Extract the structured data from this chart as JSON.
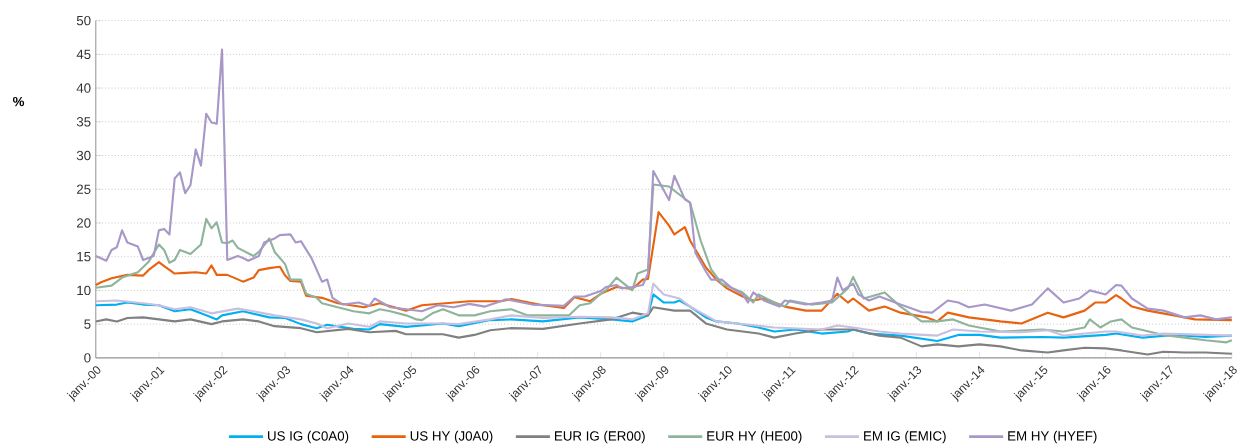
{
  "chart_data": {
    "type": "line",
    "ylabel": "%",
    "xlim": [
      "2000-01",
      "2018-01"
    ],
    "ylim": [
      0,
      50
    ],
    "yticks": [
      0,
      5,
      10,
      15,
      20,
      25,
      30,
      35,
      40,
      45,
      50
    ],
    "xticks": [
      {
        "value": "2000-01",
        "label": "janv.-00"
      },
      {
        "value": "2001-01",
        "label": "janv.-01"
      },
      {
        "value": "2002-01",
        "label": "janv.-02"
      },
      {
        "value": "2003-01",
        "label": "janv.-03"
      },
      {
        "value": "2004-01",
        "label": "janv.-04"
      },
      {
        "value": "2005-01",
        "label": "janv.-05"
      },
      {
        "value": "2006-01",
        "label": "janv.-06"
      },
      {
        "value": "2007-01",
        "label": "janv.-07"
      },
      {
        "value": "2008-01",
        "label": "janv.-08"
      },
      {
        "value": "2009-01",
        "label": "janv.-09"
      },
      {
        "value": "2010-01",
        "label": "janv.-10"
      },
      {
        "value": "2011-01",
        "label": "janv.-11"
      },
      {
        "value": "2012-01",
        "label": "janv.-12"
      },
      {
        "value": "2013-01",
        "label": "janv.-13"
      },
      {
        "value": "2014-01",
        "label": "janv.-14"
      },
      {
        "value": "2015-01",
        "label": "janv.-15"
      },
      {
        "value": "2016-01",
        "label": "janv.-16"
      },
      {
        "value": "2017-01",
        "label": "janv.-17"
      },
      {
        "value": "2018-01",
        "label": "janv.-18"
      }
    ],
    "grid": "y",
    "legend": "bottom",
    "series": [
      {
        "name": "US IG (C0A0)",
        "color": "#00b0f0",
        "x": [
          "2000-01",
          "2000-05",
          "2000-07",
          "2000-10",
          "2001-01",
          "2001-04",
          "2001-07",
          "2001-10",
          "2001-12",
          "2002-01",
          "2002-05",
          "2002-10",
          "2003-01",
          "2003-04",
          "2003-07",
          "2003-09",
          "2004-02",
          "2004-05",
          "2004-07",
          "2004-12",
          "2005-07",
          "2005-10",
          "2006-04",
          "2006-08",
          "2007-02",
          "2007-09",
          "2008-03",
          "2008-07",
          "2008-10",
          "2008-11",
          "2009-01",
          "2009-03",
          "2009-04",
          "2009-06",
          "2009-09",
          "2009-11",
          "2010-03",
          "2010-07",
          "2010-10",
          "2011-02",
          "2011-07",
          "2011-12",
          "2012-01",
          "2012-04",
          "2012-10",
          "2013-05",
          "2013-09",
          "2014-01",
          "2014-05",
          "2015-01",
          "2015-05",
          "2016-01",
          "2016-03",
          "2016-08",
          "2017-02",
          "2017-08",
          "2018-01"
        ],
        "values": [
          7.8,
          7.9,
          8.2,
          7.9,
          7.8,
          6.9,
          7.2,
          6.3,
          5.7,
          6.3,
          6.9,
          6.0,
          5.9,
          5.0,
          4.4,
          4.9,
          4.3,
          4.2,
          5.0,
          4.6,
          5.1,
          4.7,
          5.6,
          5.7,
          5.4,
          6.0,
          5.7,
          5.4,
          6.3,
          9.4,
          8.2,
          8.2,
          8.5,
          7.6,
          6.0,
          5.4,
          5.1,
          4.5,
          3.9,
          4.2,
          3.6,
          3.9,
          4.2,
          3.6,
          3.3,
          2.5,
          3.4,
          3.4,
          3.0,
          3.1,
          3.0,
          3.4,
          3.6,
          3.0,
          3.4,
          3.1,
          3.3
        ]
      },
      {
        "name": "US HY (J0A0)",
        "color": "#e8620f",
        "x": [
          "2000-01",
          "2000-02",
          "2000-04",
          "2000-07",
          "2000-10",
          "2000-11",
          "2001-01",
          "2001-02",
          "2001-04",
          "2001-06",
          "2001-08",
          "2001-10",
          "2001-11",
          "2001-12",
          "2002-02",
          "2002-05",
          "2002-07",
          "2002-08",
          "2002-10",
          "2002-12",
          "2003-01",
          "2003-02",
          "2003-04",
          "2003-05",
          "2003-08",
          "2003-11",
          "2004-04",
          "2004-07",
          "2004-12",
          "2005-03",
          "2005-12",
          "2006-06",
          "2006-08",
          "2007-02",
          "2007-06",
          "2007-08",
          "2007-11",
          "2008-01",
          "2008-04",
          "2008-07",
          "2008-09",
          "2008-10",
          "2008-12",
          "2009-02",
          "2009-03",
          "2009-05",
          "2009-06",
          "2009-09",
          "2009-11",
          "2010-01",
          "2010-04",
          "2010-06",
          "2010-08",
          "2010-12",
          "2011-04",
          "2011-07",
          "2011-10",
          "2011-12",
          "2012-01",
          "2012-04",
          "2012-07",
          "2012-10",
          "2013-03",
          "2013-05",
          "2013-07",
          "2013-11",
          "2014-05",
          "2014-09",
          "2015-02",
          "2015-05",
          "2015-09",
          "2015-11",
          "2016-01",
          "2016-03",
          "2016-04",
          "2016-06",
          "2016-09",
          "2017-02",
          "2017-06",
          "2018-01"
        ],
        "values": [
          10.8,
          11.2,
          11.8,
          12.3,
          12.2,
          13.0,
          14.2,
          13.6,
          12.5,
          12.6,
          12.7,
          12.5,
          13.7,
          12.3,
          12.3,
          11.3,
          11.9,
          13.0,
          13.3,
          13.5,
          12.2,
          11.4,
          11.3,
          9.2,
          8.9,
          8.1,
          7.5,
          8.1,
          7.0,
          7.8,
          8.4,
          8.4,
          8.7,
          7.8,
          7.4,
          9.0,
          8.4,
          9.5,
          10.5,
          10.2,
          11.6,
          11.7,
          21.6,
          19.6,
          18.3,
          19.4,
          17.4,
          13.4,
          11.6,
          10.3,
          9.1,
          8.5,
          8.8,
          7.6,
          7.0,
          7.0,
          9.5,
          8.2,
          8.8,
          7.0,
          7.6,
          6.7,
          6.0,
          5.4,
          6.7,
          6.0,
          5.4,
          5.1,
          6.7,
          6.0,
          7.0,
          8.2,
          8.2,
          9.3,
          8.8,
          7.6,
          7.0,
          6.3,
          5.7,
          5.6
        ]
      },
      {
        "name": "EUR IG (ER00)",
        "color": "#808080",
        "x": [
          "2000-01",
          "2000-03",
          "2000-05",
          "2000-07",
          "2000-10",
          "2001-01",
          "2001-04",
          "2001-07",
          "2001-11",
          "2002-01",
          "2002-05",
          "2002-08",
          "2002-11",
          "2003-04",
          "2003-07",
          "2004-01",
          "2004-05",
          "2004-10",
          "2004-12",
          "2005-07",
          "2005-10",
          "2006-01",
          "2006-04",
          "2006-08",
          "2007-02",
          "2007-09",
          "2008-03",
          "2008-07",
          "2008-10",
          "2008-11",
          "2009-03",
          "2009-06",
          "2009-09",
          "2010-01",
          "2010-07",
          "2010-10",
          "2011-02",
          "2011-07",
          "2012-01",
          "2012-06",
          "2012-10",
          "2013-02",
          "2013-05",
          "2013-09",
          "2014-01",
          "2014-05",
          "2014-09",
          "2015-02",
          "2015-05",
          "2015-09",
          "2016-01",
          "2016-04",
          "2016-09",
          "2016-12",
          "2017-04",
          "2017-08",
          "2018-01"
        ],
        "values": [
          5.4,
          5.7,
          5.4,
          5.9,
          6.0,
          5.7,
          5.4,
          5.7,
          5.0,
          5.4,
          5.7,
          5.4,
          4.7,
          4.4,
          3.8,
          4.3,
          3.8,
          4.0,
          3.5,
          3.5,
          3.0,
          3.4,
          4.1,
          4.4,
          4.3,
          5.1,
          5.7,
          6.7,
          6.3,
          7.5,
          7.0,
          7.0,
          5.1,
          4.2,
          3.6,
          3.0,
          3.6,
          4.2,
          4.2,
          3.3,
          3.0,
          1.7,
          2.0,
          1.7,
          2.0,
          1.7,
          1.1,
          0.8,
          1.1,
          1.5,
          1.4,
          1.1,
          0.5,
          0.9,
          0.8,
          0.8,
          0.6
        ]
      },
      {
        "name": "EUR HY (HE00)",
        "color": "#8fb49c",
        "x": [
          "2000-01",
          "2000-04",
          "2000-06",
          "2000-09",
          "2000-11",
          "2001-01",
          "2001-02",
          "2001-03",
          "2001-04",
          "2001-05",
          "2001-07",
          "2001-09",
          "2001-10",
          "2001-11",
          "2001-12",
          "2002-01",
          "2002-02",
          "2002-03",
          "2002-04",
          "2002-07",
          "2002-08",
          "2002-10",
          "2002-11",
          "2003-01",
          "2003-02",
          "2003-04",
          "2003-05",
          "2003-07",
          "2003-08",
          "2003-11",
          "2004-02",
          "2004-05",
          "2004-07",
          "2004-09",
          "2004-12",
          "2005-02",
          "2005-03",
          "2005-05",
          "2005-07",
          "2005-10",
          "2006-01",
          "2006-04",
          "2006-08",
          "2006-11",
          "2007-07",
          "2007-09",
          "2007-11",
          "2008-01",
          "2008-02",
          "2008-04",
          "2008-07",
          "2008-08",
          "2008-10",
          "2008-11",
          "2009-02",
          "2009-04",
          "2009-06",
          "2009-08",
          "2009-10",
          "2009-12",
          "2010-04",
          "2010-06",
          "2010-07",
          "2010-10",
          "2010-12",
          "2011-01",
          "2011-05",
          "2011-09",
          "2011-12",
          "2012-01",
          "2012-03",
          "2012-07",
          "2012-10",
          "2013-02",
          "2013-05",
          "2013-08",
          "2013-11",
          "2014-05",
          "2015-01",
          "2015-05",
          "2015-09",
          "2015-10",
          "2015-12",
          "2016-02",
          "2016-04",
          "2016-06",
          "2016-12",
          "2017-04",
          "2017-08",
          "2017-12",
          "2018-01"
        ],
        "values": [
          10.4,
          10.7,
          11.9,
          12.7,
          14.2,
          16.8,
          16.0,
          14.1,
          14.5,
          16.0,
          15.4,
          16.8,
          20.6,
          19.2,
          20.1,
          17.1,
          17.0,
          17.4,
          16.3,
          15.1,
          15.7,
          17.7,
          15.7,
          13.9,
          11.6,
          11.6,
          9.5,
          8.9,
          8.1,
          7.5,
          6.9,
          6.6,
          7.2,
          6.9,
          6.3,
          5.7,
          5.6,
          6.6,
          7.2,
          6.3,
          6.3,
          6.9,
          7.2,
          6.3,
          6.3,
          7.8,
          8.1,
          9.5,
          10.0,
          11.9,
          10.0,
          12.5,
          13.1,
          25.7,
          25.4,
          24.2,
          23.0,
          17.4,
          13.1,
          11.0,
          9.7,
          8.2,
          9.4,
          8.2,
          7.6,
          8.5,
          7.9,
          8.2,
          10.3,
          12.0,
          8.8,
          9.7,
          7.6,
          5.4,
          5.4,
          5.7,
          4.8,
          3.9,
          4.2,
          3.9,
          4.5,
          5.7,
          4.5,
          5.4,
          5.7,
          4.5,
          3.4,
          3.0,
          2.6,
          2.3,
          2.6
        ]
      },
      {
        "name": "EM IG (EMIC)",
        "color": "#c8c0de",
        "x": [
          "2000-01",
          "2000-05",
          "2000-10",
          "2001-01",
          "2001-04",
          "2001-07",
          "2001-11",
          "2002-04",
          "2002-07",
          "2002-11",
          "2003-04",
          "2003-07",
          "2003-09",
          "2004-01",
          "2004-05",
          "2004-07",
          "2004-12",
          "2005-07",
          "2005-10",
          "2006-04",
          "2006-08",
          "2007-02",
          "2007-09",
          "2008-03",
          "2008-07",
          "2008-10",
          "2008-11",
          "2009-01",
          "2009-04",
          "2009-06",
          "2009-09",
          "2009-11",
          "2010-03",
          "2010-10",
          "2011-07",
          "2011-10",
          "2012-01",
          "2012-06",
          "2012-10",
          "2013-05",
          "2013-08",
          "2014-01",
          "2014-09",
          "2015-02",
          "2015-05",
          "2016-01",
          "2016-03",
          "2016-08",
          "2016-12",
          "2017-08",
          "2018-01"
        ],
        "values": [
          8.4,
          8.5,
          8.1,
          7.8,
          7.2,
          7.5,
          6.6,
          7.3,
          6.9,
          6.3,
          5.7,
          5.1,
          4.4,
          5.1,
          4.6,
          5.4,
          5.1,
          5.1,
          5.0,
          5.7,
          6.3,
          5.9,
          6.1,
          6.0,
          5.7,
          6.6,
          11.0,
          9.4,
          8.8,
          7.6,
          6.3,
          5.4,
          5.1,
          4.5,
          4.2,
          4.8,
          4.5,
          3.9,
          3.6,
          3.3,
          4.2,
          3.9,
          3.8,
          4.1,
          3.3,
          3.9,
          3.9,
          3.3,
          3.6,
          3.4,
          3.3
        ]
      },
      {
        "name": "EM HY (HYEF)",
        "color": "#a898c8",
        "x": [
          "2000-01",
          "2000-03",
          "2000-04",
          "2000-05",
          "2000-06",
          "2000-07",
          "2000-09",
          "2000-10",
          "2000-12",
          "2001-01",
          "2001-02",
          "2001-03",
          "2001-04",
          "2001-05",
          "2001-06",
          "2001-07",
          "2001-08",
          "2001-09",
          "2001-10",
          "2001-11",
          "2001-12",
          "2002-01",
          "2002-02",
          "2002-04",
          "2002-05",
          "2002-06",
          "2002-08",
          "2002-09",
          "2002-11",
          "2002-12",
          "2003-02",
          "2003-03",
          "2003-04",
          "2003-06",
          "2003-08",
          "2003-09",
          "2003-10",
          "2003-12",
          "2004-03",
          "2004-05",
          "2004-06",
          "2004-09",
          "2004-12",
          "2005-03",
          "2005-06",
          "2005-09",
          "2005-12",
          "2006-03",
          "2006-06",
          "2006-07",
          "2006-12",
          "2007-06",
          "2007-08",
          "2007-10",
          "2008-01",
          "2008-02",
          "2008-04",
          "2008-05",
          "2008-07",
          "2008-09",
          "2008-10",
          "2008-11",
          "2009-02",
          "2009-03",
          "2009-05",
          "2009-06",
          "2009-07",
          "2009-09",
          "2009-10",
          "2009-12",
          "2010-02",
          "2010-04",
          "2010-05",
          "2010-06",
          "2010-08",
          "2010-11",
          "2010-12",
          "2011-04",
          "2011-07",
          "2011-09",
          "2011-10",
          "2011-11",
          "2012-01",
          "2012-02",
          "2012-04",
          "2012-06",
          "2012-10",
          "2013-02",
          "2013-04",
          "2013-07",
          "2013-09",
          "2013-11",
          "2014-02",
          "2014-07",
          "2014-11",
          "2015-02",
          "2015-05",
          "2015-08",
          "2015-10",
          "2016-01",
          "2016-03",
          "2016-04",
          "2016-06",
          "2016-09",
          "2016-12",
          "2017-04",
          "2017-07",
          "2017-10",
          "2018-01"
        ],
        "values": [
          15.1,
          14.4,
          16.0,
          16.4,
          18.9,
          17.1,
          16.5,
          14.5,
          15.1,
          18.9,
          19.1,
          18.3,
          26.6,
          27.5,
          24.4,
          25.6,
          30.9,
          28.5,
          36.2,
          34.9,
          34.7,
          45.7,
          14.5,
          15.1,
          14.8,
          14.4,
          15.1,
          17.1,
          17.7,
          18.2,
          18.3,
          17.1,
          17.3,
          14.8,
          11.3,
          11.6,
          8.9,
          7.9,
          8.2,
          7.7,
          8.8,
          7.5,
          7.2,
          6.9,
          7.8,
          7.5,
          8.0,
          7.6,
          8.4,
          8.7,
          7.9,
          7.7,
          9.1,
          9.1,
          9.9,
          10.5,
          10.8,
          10.3,
          10.5,
          10.8,
          12.5,
          27.7,
          23.4,
          27.0,
          23.5,
          23.0,
          15.6,
          12.8,
          11.6,
          11.6,
          10.3,
          9.4,
          8.2,
          9.7,
          8.5,
          7.6,
          8.5,
          7.9,
          8.2,
          8.5,
          11.9,
          10.0,
          11.0,
          9.4,
          8.5,
          9.1,
          7.9,
          6.8,
          6.7,
          8.5,
          8.2,
          7.5,
          7.9,
          7.0,
          7.9,
          10.3,
          8.2,
          8.8,
          10.0,
          9.4,
          10.8,
          10.7,
          8.8,
          7.3,
          7.0,
          6.0,
          6.3,
          5.7,
          6.0
        ]
      }
    ]
  }
}
